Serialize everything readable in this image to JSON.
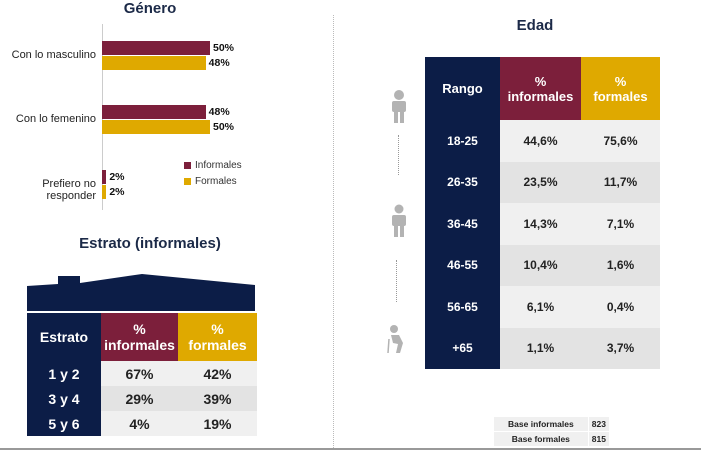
{
  "genero": {
    "title": "Género",
    "chart_data": {
      "type": "bar",
      "orientation": "horizontal",
      "title": "Género",
      "categories": [
        "Con lo masculino",
        "Con lo femenino",
        "Prefiero no responder"
      ],
      "series": [
        {
          "name": "Informales",
          "color": "#7c1f3b",
          "values": [
            50,
            48,
            2
          ]
        },
        {
          "name": "Formales",
          "color": "#dfa900",
          "values": [
            48,
            50,
            2
          ]
        }
      ],
      "value_labels": [
        [
          "50%",
          "48%",
          "2%"
        ],
        [
          "48%",
          "50%",
          "2%"
        ]
      ],
      "legend": "right",
      "grid": false
    }
  },
  "estrato": {
    "title": "Estrato (informales)",
    "headers": [
      "Estrato",
      "%\ninformales",
      "%\nformales"
    ],
    "rows": [
      [
        "1 y 2",
        "67%",
        "42%"
      ],
      [
        "3 y 4",
        "29%",
        "39%"
      ],
      [
        "5 y 6",
        "4%",
        "19%"
      ]
    ]
  },
  "edad": {
    "title": "Edad",
    "headers": [
      "Rango",
      "%\ninformales",
      "%\nformales"
    ],
    "rows": [
      [
        "18-25",
        "44,6%",
        "75,6%"
      ],
      [
        "26-35",
        "23,5%",
        "11,7%"
      ],
      [
        "36-45",
        "14,3%",
        "7,1%"
      ],
      [
        "46-55",
        "10,4%",
        "1,6%"
      ],
      [
        "56-65",
        "6,1%",
        "0,4%"
      ],
      [
        "+65",
        "1,1%",
        "3,7%"
      ]
    ],
    "icons": [
      "young-person-icon",
      "adult-person-icon",
      "elderly-person-icon"
    ]
  },
  "base": [
    [
      "Base informales",
      "823"
    ],
    [
      "Base formales",
      "815"
    ]
  ],
  "colors": {
    "navy": "#0c1d47",
    "maroon": "#7c1f3b",
    "gold": "#dfa900"
  }
}
